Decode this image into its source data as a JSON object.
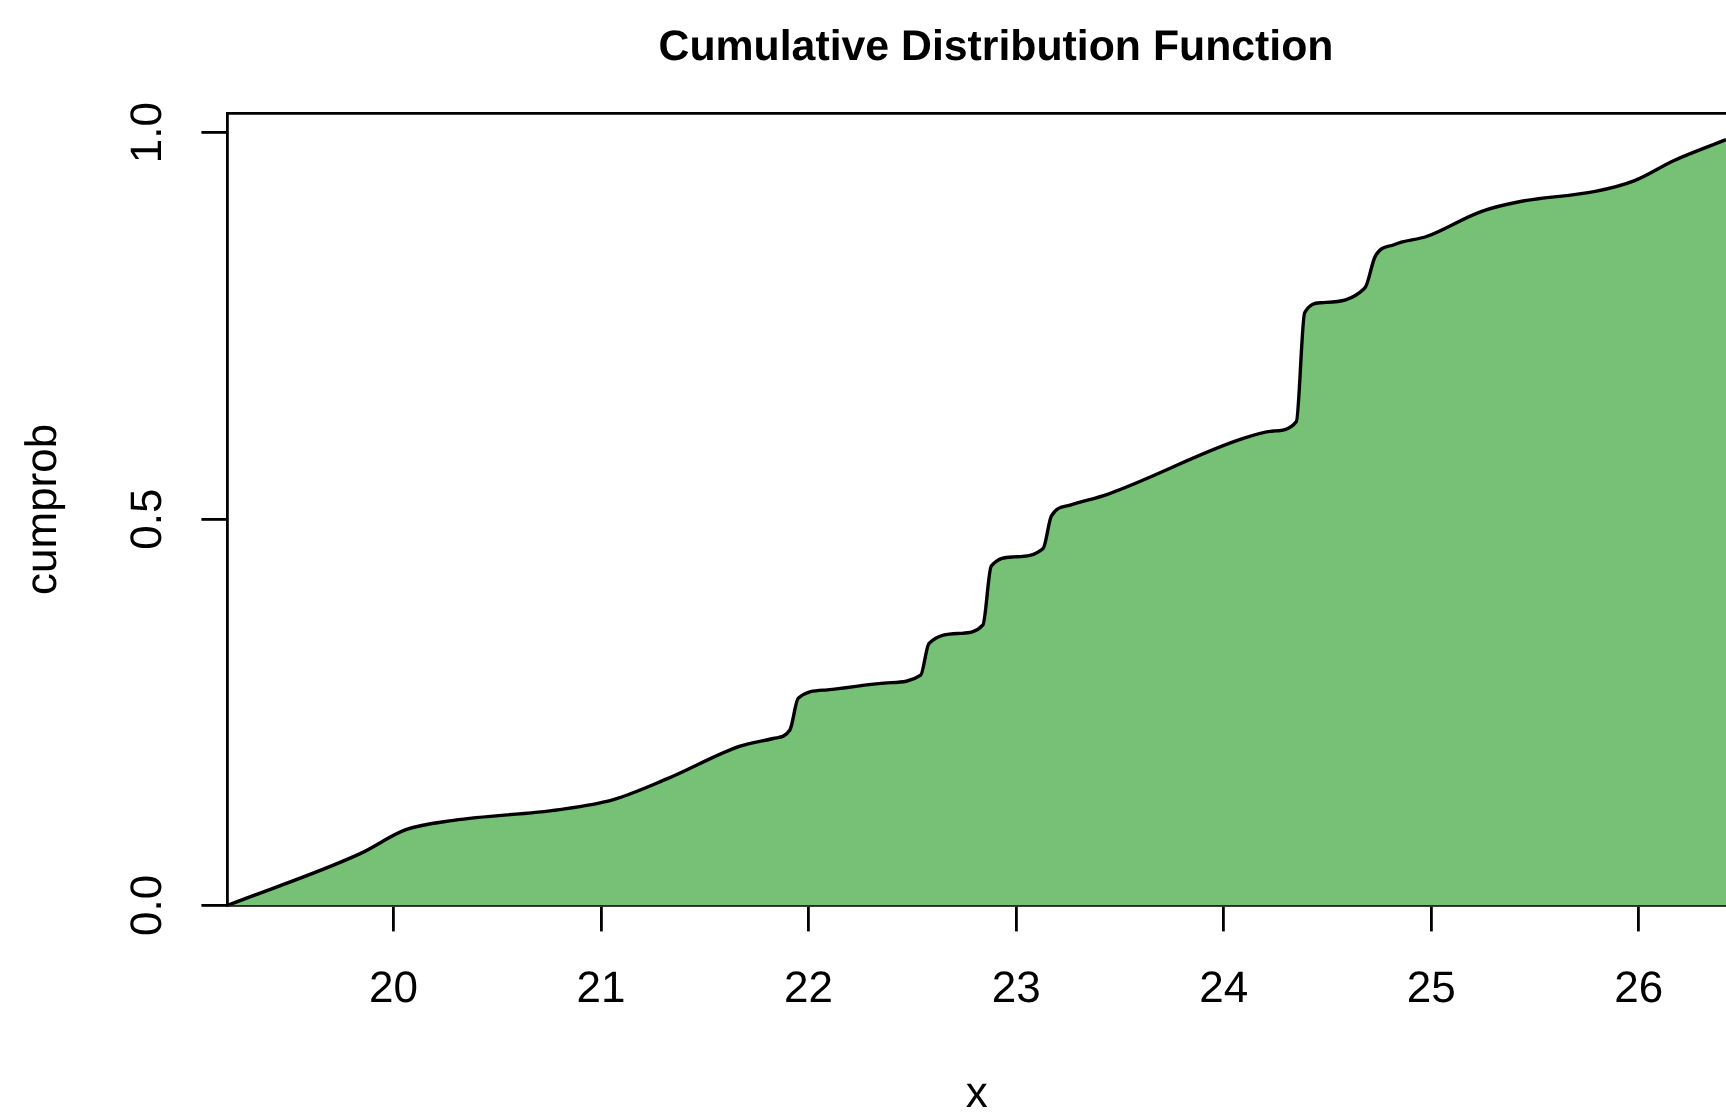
{
  "chart_data": {
    "type": "area",
    "title": "Cumulative Distribution Function",
    "xlabel": "x",
    "ylabel": "cumprob",
    "x": [
      19.2,
      19.84,
      20.06,
      20.29,
      20.8,
      21.06,
      21.32,
      21.67,
      21.83,
      21.91,
      21.95,
      22.09,
      22.38,
      22.54,
      22.58,
      22.73,
      22.84,
      22.88,
      22.99,
      23.13,
      23.17,
      23.26,
      23.44,
      24.08,
      24.24,
      24.35,
      24.39,
      24.47,
      24.68,
      24.73,
      24.82,
      24.98,
      25.24,
      25.43,
      25.79,
      25.98,
      26.17,
      26.42
    ],
    "values": [
      0,
      0.067,
      0.098,
      0.11,
      0.124,
      0.137,
      0.164,
      0.206,
      0.216,
      0.227,
      0.268,
      0.279,
      0.288,
      0.298,
      0.339,
      0.352,
      0.363,
      0.439,
      0.451,
      0.462,
      0.504,
      0.518,
      0.532,
      0.603,
      0.614,
      0.626,
      0.767,
      0.78,
      0.799,
      0.84,
      0.855,
      0.866,
      0.898,
      0.911,
      0.924,
      0.938,
      0.964,
      0.991
    ],
    "color": "#76c176",
    "xlim": [
      19.2,
      26.42
    ],
    "ylim": [
      0,
      1.025
    ],
    "xticks": [
      20,
      21,
      22,
      23,
      24,
      25,
      26
    ],
    "yticks": [
      {
        "value": 0,
        "label": "0.0"
      },
      {
        "value": 0.5,
        "label": "0.5"
      },
      {
        "value": 1,
        "label": "1.0"
      }
    ]
  }
}
